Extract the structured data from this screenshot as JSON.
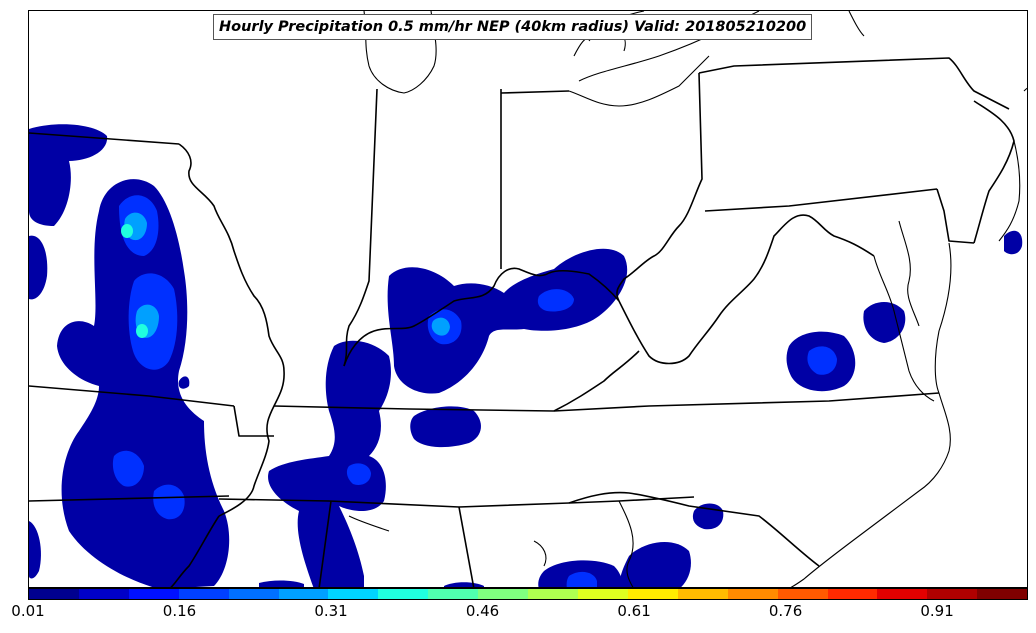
{
  "title": "Hourly Precipitation 0.5 mm/hr NEP (40km radius) Valid: 201805210200",
  "colorbar": {
    "min": 0.01,
    "max": 1.0,
    "ticks": [
      "0.01",
      "0.16",
      "0.31",
      "0.46",
      "0.61",
      "0.76",
      "0.91"
    ],
    "colors": [
      "#00008f",
      "#0000c8",
      "#0010ff",
      "#0040ff",
      "#0070ff",
      "#00a0ff",
      "#00d4ff",
      "#20ffdf",
      "#50ffaf",
      "#80ff7f",
      "#afff50",
      "#dfff20",
      "#ffeb00",
      "#ffbb00",
      "#ff8b00",
      "#ff5a00",
      "#ff2a00",
      "#e30000",
      "#b00000",
      "#800000"
    ]
  },
  "map": {
    "region": "Central and Eastern United States",
    "field_colors": {
      "low": "#0000a5",
      "mid": "#0030ff",
      "high": "#00c8ff",
      "peak": "#20ffdf"
    }
  }
}
